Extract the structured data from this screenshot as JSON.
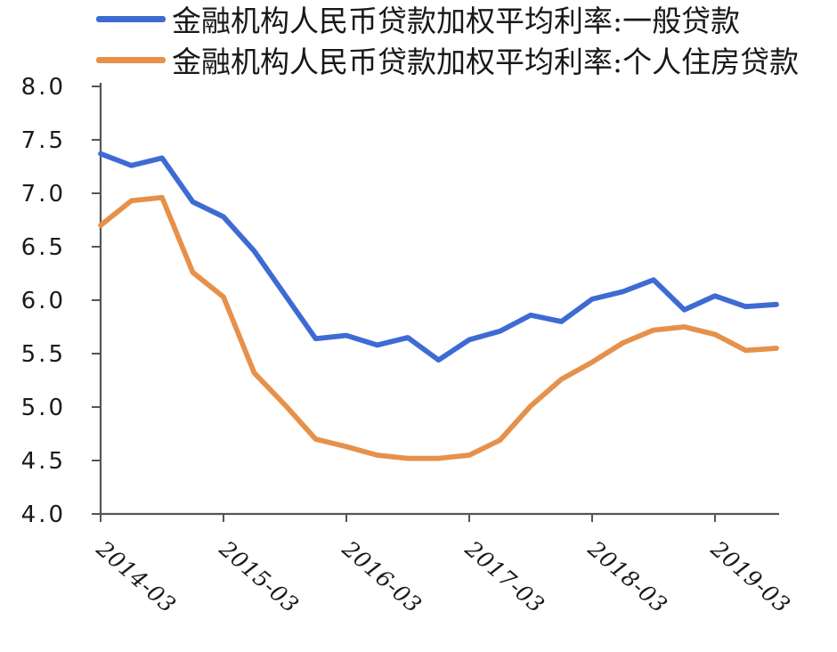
{
  "chart_data": {
    "type": "line",
    "x": [
      "2014-03",
      "2014-06",
      "2014-09",
      "2014-12",
      "2015-03",
      "2015-06",
      "2015-09",
      "2015-12",
      "2016-03",
      "2016-06",
      "2016-09",
      "2016-12",
      "2017-03",
      "2017-06",
      "2017-09",
      "2017-12",
      "2018-03",
      "2018-06",
      "2018-09",
      "2018-12",
      "2019-03",
      "2019-06",
      "2019-09"
    ],
    "series": [
      {
        "name": "金融机构人民币贷款加权平均利率:一般贷款",
        "color": "#3e6bd3",
        "values": [
          7.37,
          7.26,
          7.33,
          6.92,
          6.78,
          6.46,
          6.05,
          5.64,
          5.67,
          5.58,
          5.65,
          5.44,
          5.63,
          5.71,
          5.86,
          5.8,
          6.01,
          6.08,
          6.19,
          5.91,
          6.04,
          5.94,
          5.96
        ]
      },
      {
        "name": "金融机构人民币贷款加权平均利率:个人住房贷款",
        "color": "#e6914b",
        "values": [
          6.7,
          6.93,
          6.96,
          6.26,
          6.03,
          5.32,
          5.02,
          4.7,
          4.63,
          4.55,
          4.52,
          4.52,
          4.55,
          4.69,
          5.01,
          5.26,
          5.42,
          5.6,
          5.72,
          5.75,
          5.68,
          5.53,
          5.55
        ]
      }
    ],
    "ylim": [
      4.0,
      8.0
    ],
    "yticks": [
      "8.0",
      "7.5",
      "7.0",
      "6.5",
      "6.0",
      "5.5",
      "5.0",
      "4.5",
      "4.0"
    ],
    "xticks": [
      "2014-03",
      "2015-03",
      "2016-03",
      "2017-03",
      "2018-03",
      "2019-03"
    ],
    "grid": false,
    "legend_position": "top-left",
    "axis_color": "#555555",
    "text_color": "#1a1a1a"
  },
  "legend": [
    {
      "label": "金融机构人民币贷款加权平均利率:一般贷款",
      "color": "#3e6bd3"
    },
    {
      "label": "金融机构人民币贷款加权平均利率:个人住房贷款",
      "color": "#e6914b"
    }
  ]
}
